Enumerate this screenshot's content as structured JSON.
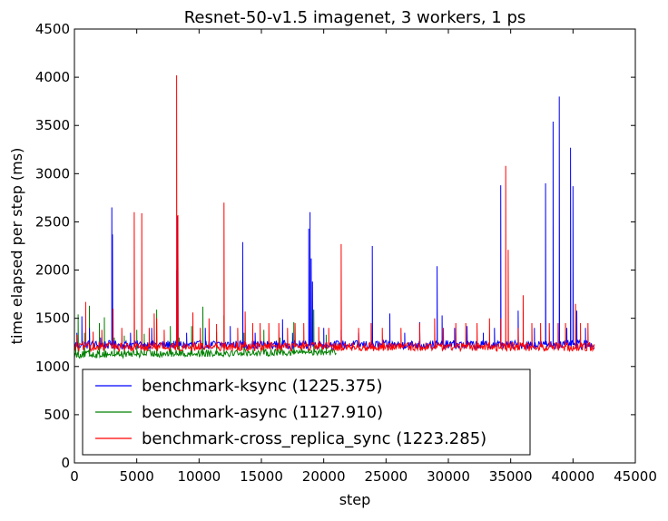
{
  "chart_data": {
    "type": "line",
    "title": "Resnet-50-v1.5 imagenet, 3 workers, 1 ps",
    "xlabel": "step",
    "ylabel": "time elapsed per step (ms)",
    "xlim": [
      0,
      45000
    ],
    "ylim": [
      0,
      4500
    ],
    "xticks": [
      0,
      5000,
      10000,
      15000,
      20000,
      25000,
      30000,
      35000,
      40000,
      45000
    ],
    "yticks": [
      0,
      500,
      1000,
      1500,
      2000,
      2500,
      3000,
      3500,
      4000,
      4500
    ],
    "grid": false,
    "legend_position": "lower-left",
    "series": [
      {
        "name": "benchmark-ksync (1225.375)",
        "color": "#0000ff",
        "x_end": 41700,
        "baseline": 1225,
        "noise": 45,
        "spikes": [
          [
            200,
            1350
          ],
          [
            600,
            1520
          ],
          [
            1200,
            1400
          ],
          [
            2100,
            1300
          ],
          [
            3000,
            2650
          ],
          [
            3050,
            2370
          ],
          [
            4500,
            1350
          ],
          [
            6200,
            1400
          ],
          [
            8200,
            2000
          ],
          [
            8250,
            2560
          ],
          [
            8300,
            2200
          ],
          [
            9000,
            1350
          ],
          [
            10500,
            1400
          ],
          [
            12500,
            1420
          ],
          [
            13500,
            2290
          ],
          [
            14500,
            1350
          ],
          [
            16700,
            1490
          ],
          [
            17500,
            1350
          ],
          [
            18800,
            2430
          ],
          [
            18900,
            2600
          ],
          [
            19000,
            2120
          ],
          [
            19100,
            1880
          ],
          [
            20000,
            1400
          ],
          [
            21400,
            1380
          ],
          [
            22800,
            1350
          ],
          [
            23900,
            2250
          ],
          [
            25300,
            1550
          ],
          [
            26500,
            1350
          ],
          [
            27700,
            1460
          ],
          [
            29100,
            2040
          ],
          [
            29500,
            1530
          ],
          [
            30500,
            1400
          ],
          [
            31500,
            1420
          ],
          [
            32800,
            1350
          ],
          [
            33700,
            1400
          ],
          [
            34200,
            2880
          ],
          [
            35600,
            1580
          ],
          [
            36900,
            1400
          ],
          [
            37800,
            2900
          ],
          [
            38400,
            3540
          ],
          [
            38900,
            3800
          ],
          [
            39500,
            1400
          ],
          [
            39800,
            3270
          ],
          [
            40000,
            2870
          ],
          [
            40300,
            1580
          ],
          [
            41000,
            1400
          ]
        ]
      },
      {
        "name": "benchmark-async (1127.910)",
        "color": "#008000",
        "x_end": 21000,
        "baseline": 1125,
        "noise": 40,
        "spikes": [
          [
            100,
            1250
          ],
          [
            300,
            1540
          ],
          [
            800,
            1350
          ],
          [
            1200,
            1630
          ],
          [
            2000,
            1450
          ],
          [
            2400,
            1510
          ],
          [
            3200,
            1300
          ],
          [
            4000,
            1320
          ],
          [
            5000,
            1380
          ],
          [
            5600,
            1340
          ],
          [
            6600,
            1590
          ],
          [
            7700,
            1420
          ],
          [
            8400,
            1300
          ],
          [
            9400,
            1420
          ],
          [
            10300,
            1620
          ],
          [
            11400,
            1360
          ],
          [
            12000,
            1530
          ],
          [
            13600,
            1350
          ],
          [
            15200,
            1380
          ],
          [
            16500,
            1300
          ],
          [
            17600,
            1460
          ],
          [
            19200,
            1590
          ],
          [
            20200,
            1330
          ]
        ]
      },
      {
        "name": "benchmark-cross_replica_sync (1223.285)",
        "color": "#ff0000",
        "x_end": 41700,
        "baseline": 1205,
        "noise": 45,
        "spikes": [
          [
            200,
            1330
          ],
          [
            900,
            1670
          ],
          [
            1500,
            1360
          ],
          [
            2200,
            1380
          ],
          [
            3100,
            1600
          ],
          [
            3800,
            1400
          ],
          [
            4800,
            2600
          ],
          [
            5400,
            2590
          ],
          [
            6000,
            1400
          ],
          [
            6400,
            1550
          ],
          [
            6600,
            1500
          ],
          [
            7200,
            1380
          ],
          [
            8200,
            4020
          ],
          [
            8300,
            2570
          ],
          [
            9500,
            1560
          ],
          [
            10100,
            1400
          ],
          [
            10800,
            1500
          ],
          [
            11400,
            1440
          ],
          [
            12000,
            2700
          ],
          [
            13100,
            1400
          ],
          [
            13700,
            1570
          ],
          [
            14300,
            1450
          ],
          [
            14900,
            1450
          ],
          [
            15600,
            1450
          ],
          [
            16400,
            1450
          ],
          [
            17100,
            1400
          ],
          [
            17700,
            1450
          ],
          [
            18400,
            1450
          ],
          [
            19600,
            1410
          ],
          [
            20400,
            1400
          ],
          [
            21400,
            2270
          ],
          [
            22800,
            1400
          ],
          [
            23800,
            1450
          ],
          [
            24700,
            1400
          ],
          [
            26200,
            1400
          ],
          [
            27700,
            1450
          ],
          [
            28900,
            1500
          ],
          [
            29600,
            1400
          ],
          [
            30600,
            1450
          ],
          [
            31400,
            1450
          ],
          [
            32300,
            1450
          ],
          [
            33300,
            1500
          ],
          [
            34200,
            1500
          ],
          [
            34600,
            3080
          ],
          [
            34800,
            2210
          ],
          [
            35600,
            1400
          ],
          [
            36000,
            1740
          ],
          [
            36700,
            1450
          ],
          [
            37400,
            1450
          ],
          [
            38100,
            1450
          ],
          [
            38800,
            1450
          ],
          [
            39400,
            1450
          ],
          [
            40200,
            1650
          ],
          [
            40600,
            1450
          ],
          [
            41200,
            1450
          ]
        ]
      }
    ]
  }
}
